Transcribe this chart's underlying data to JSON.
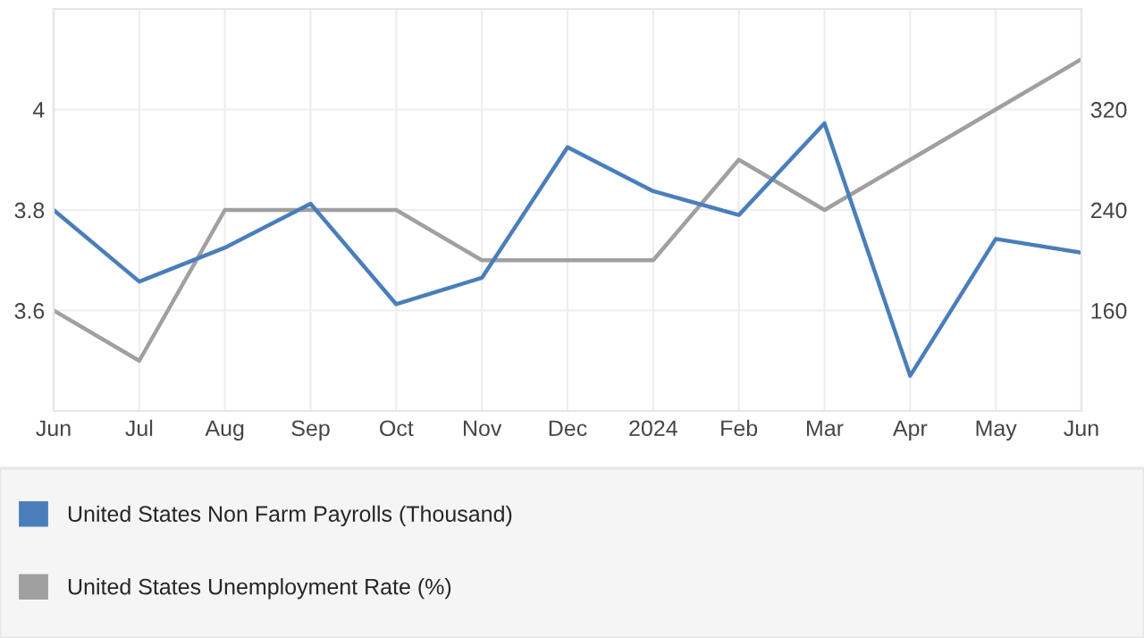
{
  "chart_data": {
    "type": "line",
    "categories": [
      "Jun",
      "Jul",
      "Aug",
      "Sep",
      "Oct",
      "Nov",
      "Dec",
      "2024",
      "Feb",
      "Mar",
      "Apr",
      "May",
      "Jun"
    ],
    "series": [
      {
        "name": "United States Non Farm Payrolls (Thousand)",
        "color": "#4a7ebb",
        "axis": "y2",
        "values": [
          240,
          183,
          210,
          245,
          165,
          186,
          290,
          255,
          236,
          309,
          108,
          217,
          206
        ]
      },
      {
        "name": "United States Unemployment Rate (%)",
        "color": "#a0a0a0",
        "values": [
          3.6,
          3.5,
          3.8,
          3.8,
          3.8,
          3.7,
          3.7,
          3.7,
          3.9,
          3.8,
          3.9,
          4.0,
          4.1
        ]
      }
    ],
    "ylim": [
      3.4,
      4.2
    ],
    "yticks": [
      3.6,
      3.8,
      4
    ],
    "y2lim": [
      80,
      400
    ],
    "y2ticks": [
      160,
      240,
      320
    ],
    "grid": true,
    "legend": "bottom",
    "marker": "none",
    "line_style": "solid"
  }
}
